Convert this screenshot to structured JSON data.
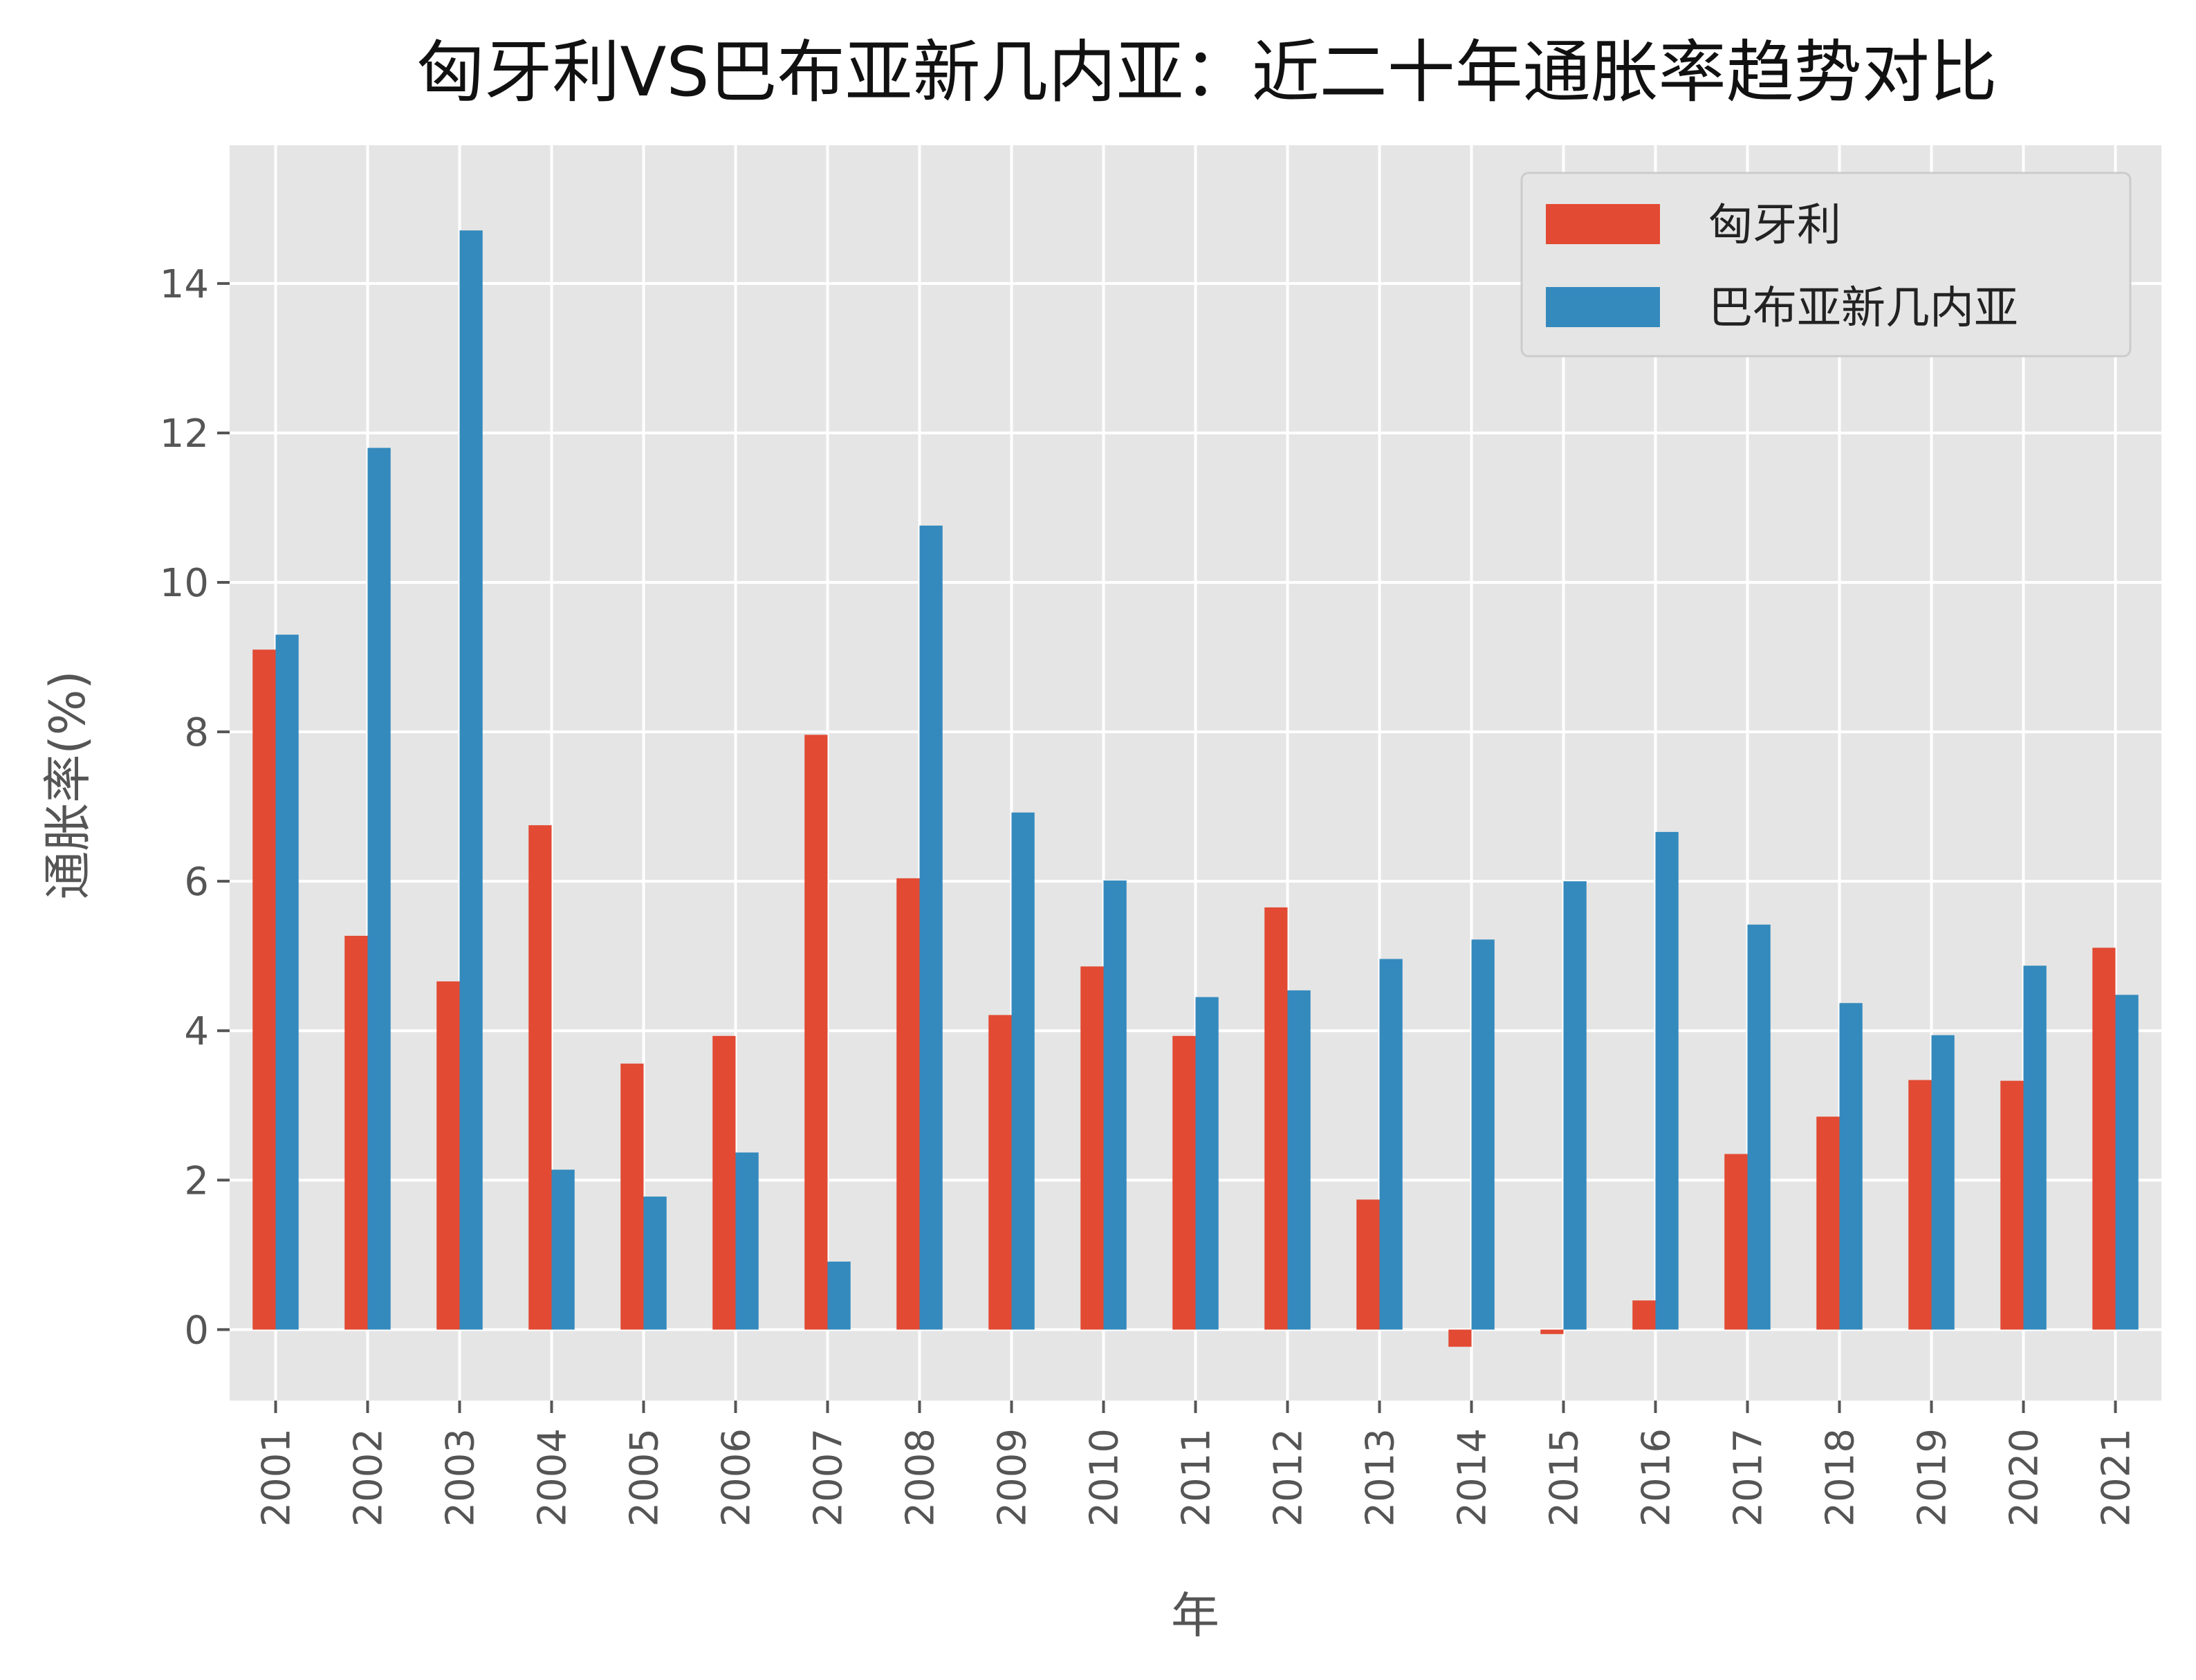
{
  "chart_data": {
    "type": "bar",
    "title": "匈牙利VS巴布亚新几内亚：近二十年通胀率趋势对比",
    "xlabel": "年",
    "ylabel": "通胀率(%)",
    "categories": [
      "2001",
      "2002",
      "2003",
      "2004",
      "2005",
      "2006",
      "2007",
      "2008",
      "2009",
      "2010",
      "2011",
      "2012",
      "2013",
      "2014",
      "2015",
      "2016",
      "2017",
      "2018",
      "2019",
      "2020",
      "2021"
    ],
    "series": [
      {
        "name": "匈牙利",
        "color": "#E24A33",
        "values": [
          9.1,
          5.27,
          4.66,
          6.75,
          3.56,
          3.93,
          7.96,
          6.04,
          4.21,
          4.86,
          3.93,
          5.65,
          1.74,
          -0.23,
          -0.06,
          0.39,
          2.35,
          2.85,
          3.34,
          3.33,
          5.11
        ]
      },
      {
        "name": "巴布亚新几内亚",
        "color": "#348ABD",
        "values": [
          9.3,
          11.8,
          14.71,
          2.14,
          1.78,
          2.37,
          0.91,
          10.76,
          6.92,
          6.01,
          4.45,
          4.54,
          4.96,
          5.22,
          6.0,
          6.66,
          5.42,
          4.37,
          3.94,
          4.87,
          4.48
        ]
      }
    ],
    "ylim": [
      -0.95,
      15.85
    ],
    "yticks": [
      0,
      2,
      4,
      6,
      8,
      10,
      12,
      14
    ],
    "grid": true,
    "legend_position": "top-right",
    "background": "#E5E5E5",
    "grid_color": "#FFFFFF"
  }
}
